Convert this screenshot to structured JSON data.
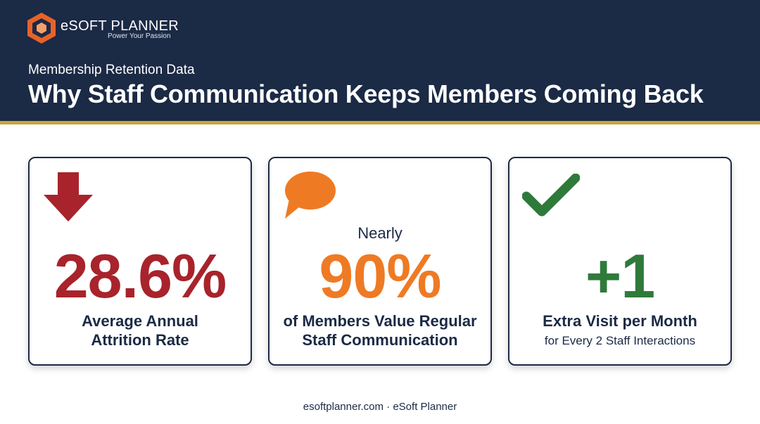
{
  "header": {
    "brand": "eSOFT PLANNER",
    "tagline": "Power Your Passion",
    "subtitle": "Membership Retention Data",
    "title": "Why Staff Communication Keeps Members Coming Back"
  },
  "cards": [
    {
      "stat": "28.6%",
      "label": "Average Annual Attrition Rate"
    },
    {
      "prefix": "Nearly",
      "stat": "90%",
      "label": "of Members Value Regular Staff Communication"
    },
    {
      "stat": "+1",
      "label": "Extra Visit per Month",
      "note": "for Every 2 Staff Interactions"
    }
  ],
  "footer": "esoftplanner.com · eSoft Planner"
}
